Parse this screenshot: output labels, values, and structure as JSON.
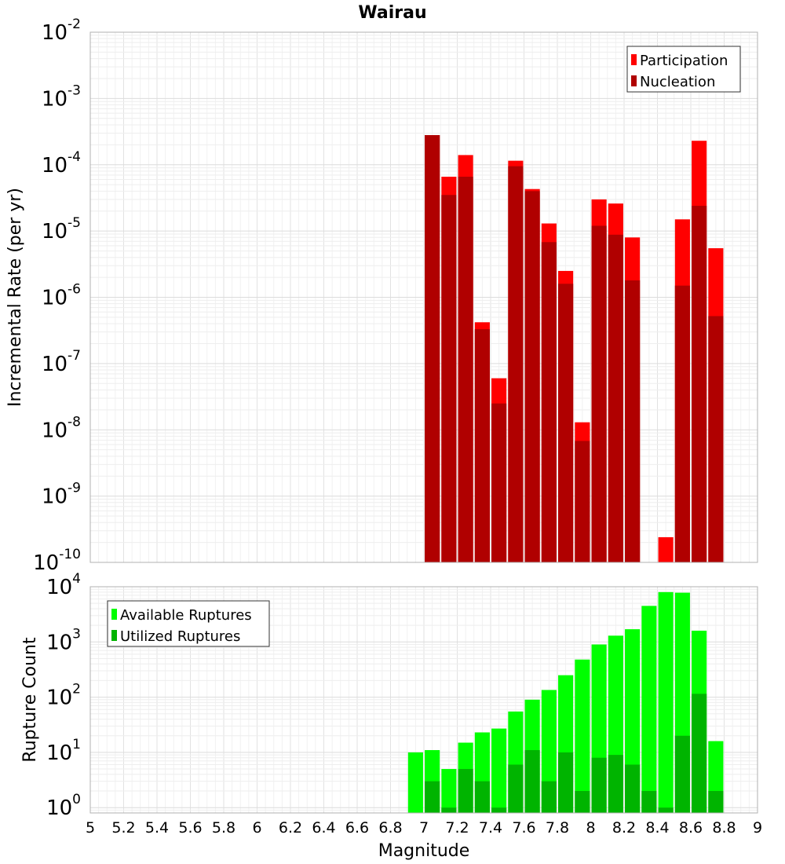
{
  "chart_data": [
    {
      "type": "bar",
      "title": "Wairau",
      "xlabel": "",
      "ylabel": "Incremental Rate (per yr)",
      "yscale": "log",
      "ylim": [
        1e-10,
        0.01
      ],
      "xlim": [
        5,
        9
      ],
      "grid": true,
      "legend_position": "top-right",
      "x": [
        6.95,
        7.05,
        7.15,
        7.25,
        7.35,
        7.45,
        7.55,
        7.65,
        7.75,
        7.85,
        7.95,
        8.05,
        8.15,
        8.25,
        8.35,
        8.45,
        8.55,
        8.65,
        8.75
      ],
      "y_tick_labels": [
        "10^-10",
        "10^-9",
        "10^-8",
        "10^-7",
        "10^-6",
        "10^-5",
        "10^-4",
        "10^-3",
        "10^-2"
      ],
      "series": [
        {
          "name": "Participation",
          "color": "#ff0000",
          "values": [
            null,
            0.00028,
            6.6e-05,
            0.00014,
            4.2e-07,
            6e-08,
            0.000115,
            4.3e-05,
            1.3e-05,
            2.5e-06,
            1.3e-08,
            3e-05,
            2.6e-05,
            8e-06,
            null,
            2.4e-10,
            1.5e-05,
            0.00023,
            5.5e-06
          ]
        },
        {
          "name": "Nucleation",
          "color": "#b00000",
          "values": [
            null,
            0.00028,
            3.5e-05,
            6.6e-05,
            3.3e-07,
            2.5e-08,
            9.5e-05,
            4e-05,
            6.8e-06,
            1.6e-06,
            6.8e-09,
            1.2e-05,
            8.8e-06,
            1.8e-06,
            null,
            null,
            1.5e-06,
            2.4e-05,
            5.2e-07
          ]
        }
      ]
    },
    {
      "type": "bar",
      "title": "",
      "xlabel": "Magnitude",
      "ylabel": "Rupture Count",
      "yscale": "log",
      "ylim": [
        0.8,
        10000
      ],
      "xlim": [
        5,
        9
      ],
      "grid": true,
      "legend_position": "top-left",
      "x": [
        6.95,
        7.05,
        7.15,
        7.25,
        7.35,
        7.45,
        7.55,
        7.65,
        7.75,
        7.85,
        7.95,
        8.05,
        8.15,
        8.25,
        8.35,
        8.45,
        8.55,
        8.65,
        8.75
      ],
      "x_tick_labels": [
        "5",
        "5.2",
        "5.4",
        "5.6",
        "5.8",
        "6",
        "6.2",
        "6.4",
        "6.6",
        "6.8",
        "7",
        "7.2",
        "7.4",
        "7.6",
        "7.8",
        "8",
        "8.2",
        "8.4",
        "8.6",
        "8.8",
        "9"
      ],
      "y_tick_labels": [
        "10^0",
        "10^1",
        "10^2",
        "10^3",
        "10^4"
      ],
      "series": [
        {
          "name": "Available Ruptures",
          "color": "#00ff00",
          "values": [
            10,
            11,
            5,
            15,
            23,
            27,
            55,
            90,
            135,
            250,
            480,
            900,
            1300,
            1700,
            4500,
            8000,
            7800,
            1600,
            16
          ]
        },
        {
          "name": "Utilized Ruptures",
          "color": "#00b400",
          "values": [
            null,
            3,
            1,
            5,
            3,
            1,
            6,
            11,
            3,
            10,
            2,
            8,
            9,
            6,
            2,
            1,
            20,
            115,
            2
          ]
        }
      ]
    }
  ]
}
